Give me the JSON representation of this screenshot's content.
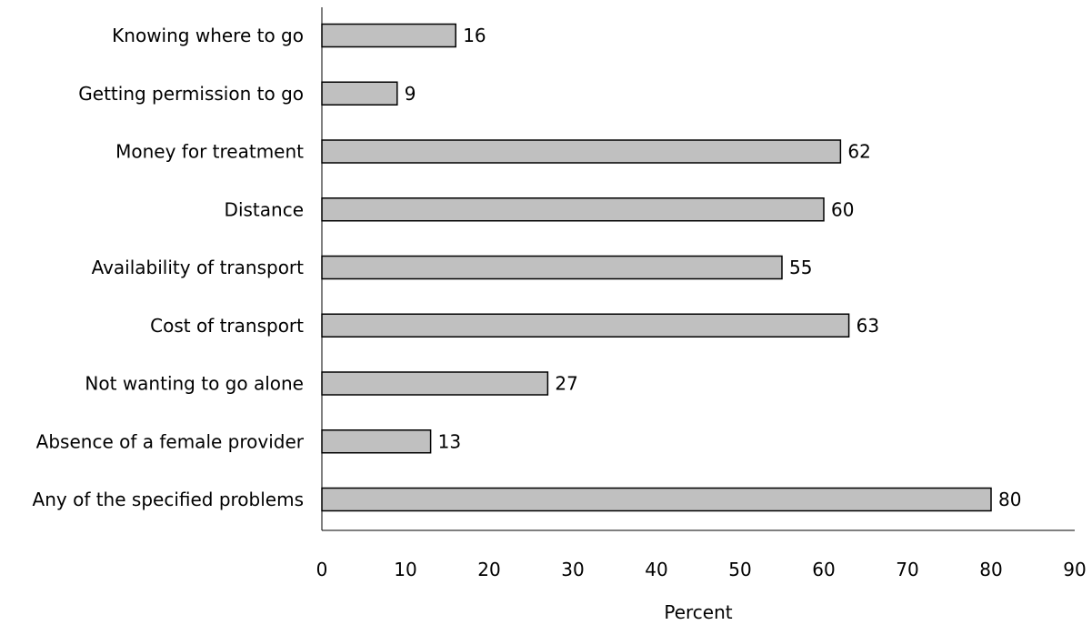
{
  "chart_data": {
    "type": "bar",
    "orientation": "horizontal",
    "categories": [
      "Knowing where to go",
      "Getting permission to go",
      "Money for treatment",
      "Distance",
      "Availability of transport",
      "Cost of transport",
      "Not wanting to go alone",
      "Absence of a female provider",
      "Any of the specified problems"
    ],
    "values": [
      16,
      9,
      62,
      60,
      55,
      63,
      27,
      13,
      80
    ],
    "value_labels": [
      "16",
      "9",
      "62",
      "60",
      "55",
      "63",
      "27",
      "13",
      "80"
    ],
    "xlabel": "Percent",
    "ylabel": "",
    "xlim": [
      0,
      90
    ],
    "xticks": [
      "0",
      "10",
      "20",
      "30",
      "40",
      "50",
      "60",
      "70",
      "80",
      "90"
    ],
    "grid": false,
    "legend": "none",
    "colors": {
      "bar_fill": "#c0c0c0",
      "bar_stroke": "#000000",
      "axis": "#000000"
    }
  }
}
